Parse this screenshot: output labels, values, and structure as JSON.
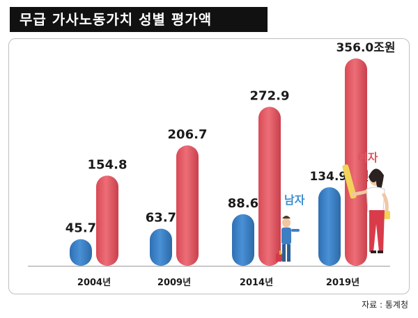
{
  "title": "무급 가사노동가치 성별 평가액",
  "source": "자료 : 통계청",
  "chart_data": {
    "type": "bar",
    "categories": [
      "2004년",
      "2009년",
      "2014년",
      "2019년"
    ],
    "series": [
      {
        "name": "남자",
        "values": [
          45.7,
          63.7,
          88.6,
          134.9
        ],
        "color": "#3a7cc0"
      },
      {
        "name": "여자",
        "values": [
          154.8,
          206.7,
          272.9,
          356.0
        ],
        "color": "#e0545f"
      }
    ],
    "value_labels": {
      "남자": [
        "45.7",
        "63.7",
        "88.6",
        "134.9조원"
      ],
      "여자": [
        "154.8",
        "206.7",
        "272.9",
        "356.0조원"
      ]
    },
    "ylim": [
      0,
      356
    ],
    "grid": false,
    "legend_colors": {
      "남자": "#3a8fd0",
      "여자": "#e0545f"
    }
  }
}
